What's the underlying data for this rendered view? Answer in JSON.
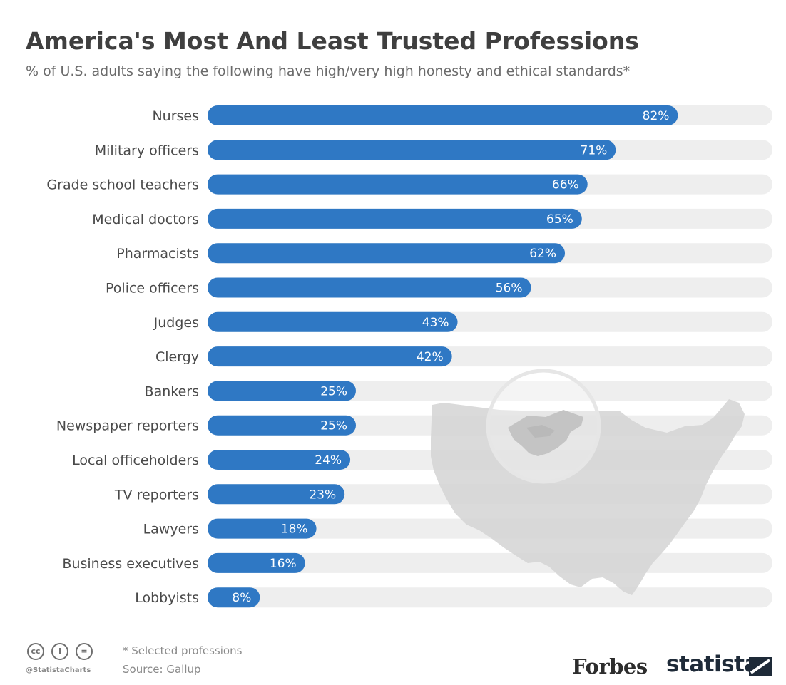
{
  "title": "America's Most And Least Trusted Professions",
  "subtitle": "% of U.S. adults saying the following have high/very high honesty and ethical standards*",
  "colors": {
    "bar": "#2f78c4",
    "track": "#eeeeee",
    "map": "#d3d3d3",
    "label": "#4a4a4a"
  },
  "chart_data": {
    "type": "bar",
    "orientation": "horizontal",
    "categories": [
      "Nurses",
      "Military officers",
      "Grade school teachers",
      "Medical doctors",
      "Pharmacists",
      "Police officers",
      "Judges",
      "Clergy",
      "Bankers",
      "Newspaper reporters",
      "Local officeholders",
      "TV reporters",
      "Lawyers",
      "Business executives",
      "Lobbyists"
    ],
    "values": [
      82,
      71,
      66,
      65,
      62,
      56,
      43,
      42,
      25,
      25,
      24,
      23,
      18,
      16,
      8
    ],
    "value_labels": [
      "82%",
      "71%",
      "66%",
      "65%",
      "62%",
      "56%",
      "43%",
      "42%",
      "25%",
      "25%",
      "24%",
      "23%",
      "18%",
      "16%",
      "8%"
    ],
    "xlim": [
      0,
      100
    ],
    "grid": false,
    "legend": "none"
  },
  "footer": {
    "note": "* Selected professions",
    "source": "Source: Gallup",
    "handle": "@StatistaCharts",
    "cc_icons": [
      "cc-icon",
      "by-icon",
      "nd-icon"
    ],
    "cc_glyphs": [
      "cc",
      "i",
      "="
    ],
    "logos": {
      "forbes": "Forbes",
      "statista": "statista"
    }
  }
}
